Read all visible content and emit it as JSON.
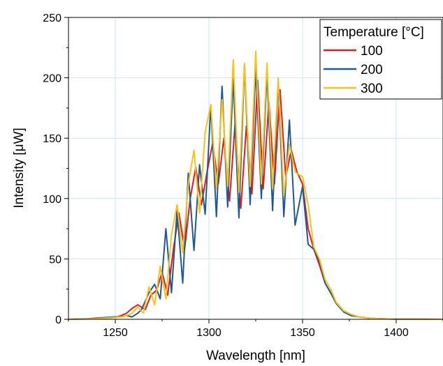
{
  "chart_data": {
    "type": "line",
    "xlabel": "Wavelength [nm]",
    "ylabel": "Intensity [μW]",
    "xlim": [
      1225,
      1425
    ],
    "ylim": [
      0,
      250
    ],
    "xticks": [
      1250,
      1300,
      1350,
      1400
    ],
    "yticks": [
      0,
      50,
      100,
      150,
      200,
      250
    ],
    "grid": true,
    "legend": {
      "title": "Temperature [°C]",
      "placement": "top-right"
    },
    "series": [
      {
        "name": "100",
        "color": "#e8191a",
        "x": [
          1225,
          1235,
          1240,
          1245,
          1250,
          1253,
          1256,
          1259,
          1262,
          1266,
          1269,
          1272,
          1275,
          1278,
          1281,
          1284,
          1287,
          1290,
          1293,
          1296,
          1299,
          1302,
          1305,
          1308,
          1311,
          1314,
          1317,
          1320,
          1323,
          1326,
          1329,
          1332,
          1335,
          1338,
          1341,
          1344,
          1347,
          1350,
          1353,
          1356,
          1359,
          1362,
          1365,
          1368,
          1372,
          1376,
          1380,
          1385,
          1390,
          1400,
          1410,
          1425
        ],
        "y": [
          0,
          0.3,
          0.5,
          1,
          1.5,
          3,
          5,
          9,
          12,
          8,
          20,
          24,
          39,
          20,
          58,
          88,
          58,
          100,
          126,
          95,
          122,
          146,
          112,
          150,
          98,
          163,
          92,
          160,
          104,
          198,
          108,
          180,
          112,
          190,
          118,
          140,
          122,
          112,
          75,
          58,
          45,
          30,
          22,
          14,
          7,
          4,
          2,
          1,
          0.5,
          0.2,
          0.1,
          0
        ]
      },
      {
        "name": "200",
        "color": "#1d5a95",
        "x": [
          1225,
          1235,
          1240,
          1245,
          1250,
          1253,
          1256,
          1259,
          1262,
          1264,
          1268,
          1271,
          1274,
          1277,
          1280,
          1283,
          1286,
          1289,
          1292,
          1295,
          1298,
          1301,
          1304,
          1307,
          1310,
          1313,
          1316,
          1319,
          1322,
          1325,
          1328,
          1331,
          1334,
          1337,
          1340,
          1343,
          1346,
          1350,
          1353,
          1356,
          1359,
          1362,
          1365,
          1368,
          1372,
          1376,
          1380,
          1385,
          1390,
          1400,
          1410,
          1425
        ],
        "y": [
          0,
          0.5,
          1,
          1.5,
          2,
          2,
          3,
          2,
          5,
          8,
          22,
          29,
          17,
          75,
          22,
          90,
          30,
          121,
          57,
          128,
          87,
          177,
          85,
          193,
          93,
          200,
          84,
          211,
          95,
          209,
          100,
          205,
          90,
          197,
          85,
          165,
          78,
          110,
          62,
          58,
          48,
          30,
          22,
          13,
          6,
          3,
          2,
          1,
          0.5,
          0.2,
          0.1,
          0
        ]
      },
      {
        "name": "300",
        "color": "#f7c31b",
        "x": [
          1225,
          1235,
          1240,
          1245,
          1250,
          1253,
          1256,
          1259,
          1262,
          1265,
          1268,
          1271,
          1274,
          1277,
          1280,
          1283,
          1286,
          1289,
          1292,
          1295,
          1298,
          1301,
          1304,
          1307,
          1310,
          1313,
          1316,
          1319,
          1322,
          1325,
          1328,
          1331,
          1334,
          1337,
          1340,
          1343,
          1346,
          1350,
          1353,
          1356,
          1359,
          1362,
          1365,
          1368,
          1372,
          1376,
          1380,
          1385,
          1390,
          1400,
          1410,
          1425
        ],
        "y": [
          0,
          0.3,
          0.5,
          1,
          1.5,
          2,
          3,
          5,
          10,
          5,
          27,
          12,
          44,
          17,
          70,
          95,
          55,
          112,
          140,
          88,
          155,
          178,
          108,
          182,
          110,
          215,
          105,
          212,
          110,
          222,
          112,
          212,
          108,
          200,
          102,
          145,
          122,
          118,
          95,
          60,
          50,
          33,
          25,
          14,
          7,
          4,
          2,
          1,
          0.5,
          0.2,
          0.1,
          0
        ]
      }
    ]
  }
}
